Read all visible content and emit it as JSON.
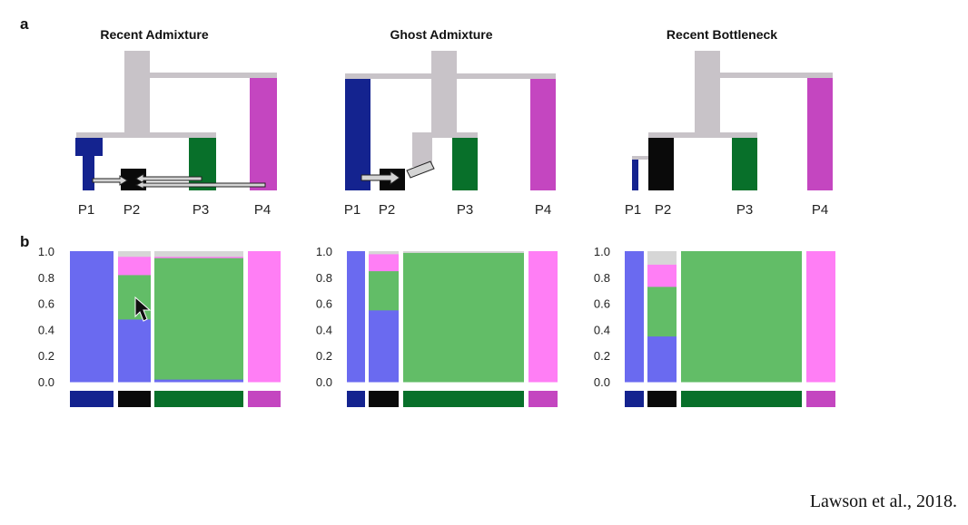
{
  "panel_a_label": "a",
  "panel_b_label": "b",
  "citation": "Lawson et al., 2018.",
  "colors": {
    "tree_trunk": "#c8c3c8",
    "P1": "#14238f",
    "P2": "#0a0a0a",
    "P3": "#08702a",
    "P4": "#c446c0",
    "arrow_fill": "#d4d4d4",
    "arrow_stroke": "#222222"
  },
  "trees": [
    {
      "title": "Recent Admixture",
      "populations": [
        "P1",
        "P2",
        "P3",
        "P4"
      ]
    },
    {
      "title": "Ghost Admixture",
      "populations": [
        "P1",
        "P2",
        "P3",
        "P4"
      ]
    },
    {
      "title": "Recent Bottleneck",
      "populations": [
        "P1",
        "P2",
        "P3",
        "P4"
      ]
    }
  ],
  "chart_data": [
    {
      "type": "bar",
      "stacked": true,
      "title": "",
      "yticks": [
        "0.0",
        "0.2",
        "0.4",
        "0.6",
        "0.8",
        "1.0"
      ],
      "ylim": [
        0,
        1
      ],
      "populations": [
        "P1",
        "P2",
        "P3",
        "P4"
      ],
      "components": [
        {
          "color": "#6a6af0",
          "fraction": {
            "P1": 1.0,
            "P2": 0.48,
            "P3": 0.02,
            "P4": 0.0
          }
        },
        {
          "color": "#62bd67",
          "fraction": {
            "P1": 0.0,
            "P2": 0.34,
            "P3": 0.93,
            "P4": 0.0
          }
        },
        {
          "color": "#ff7ef5",
          "fraction": {
            "P1": 0.0,
            "P2": 0.14,
            "P3": 0.01,
            "P4": 1.0
          }
        },
        {
          "color": "#d6d6d6",
          "fraction": {
            "P1": 0.0,
            "P2": 0.04,
            "P3": 0.04,
            "P4": 0.0
          }
        }
      ]
    },
    {
      "type": "bar",
      "stacked": true,
      "title": "",
      "yticks": [
        "0.0",
        "0.2",
        "0.4",
        "0.6",
        "0.8",
        "1.0"
      ],
      "ylim": [
        0,
        1
      ],
      "populations": [
        "P1",
        "P2",
        "P3",
        "P4"
      ],
      "components": [
        {
          "color": "#6a6af0",
          "fraction": {
            "P1": 1.0,
            "P2": 0.55,
            "P3": 0.0,
            "P4": 0.0
          }
        },
        {
          "color": "#62bd67",
          "fraction": {
            "P1": 0.0,
            "P2": 0.3,
            "P3": 0.99,
            "P4": 0.0
          }
        },
        {
          "color": "#ff7ef5",
          "fraction": {
            "P1": 0.0,
            "P2": 0.13,
            "P3": 0.0,
            "P4": 1.0
          }
        },
        {
          "color": "#d6d6d6",
          "fraction": {
            "P1": 0.0,
            "P2": 0.02,
            "P3": 0.01,
            "P4": 0.0
          }
        }
      ]
    },
    {
      "type": "bar",
      "stacked": true,
      "title": "",
      "yticks": [
        "0.0",
        "0.2",
        "0.4",
        "0.6",
        "0.8",
        "1.0"
      ],
      "ylim": [
        0,
        1
      ],
      "populations": [
        "P1",
        "P2",
        "P3",
        "P4"
      ],
      "components": [
        {
          "color": "#6a6af0",
          "fraction": {
            "P1": 1.0,
            "P2": 0.35,
            "P3": 0.0,
            "P4": 0.0
          }
        },
        {
          "color": "#62bd67",
          "fraction": {
            "P1": 0.0,
            "P2": 0.38,
            "P3": 1.0,
            "P4": 0.0
          }
        },
        {
          "color": "#ff7ef5",
          "fraction": {
            "P1": 0.0,
            "P2": 0.17,
            "P3": 0.0,
            "P4": 1.0
          }
        },
        {
          "color": "#d6d6d6",
          "fraction": {
            "P1": 0.0,
            "P2": 0.1,
            "P3": 0.0,
            "P4": 0.0
          }
        }
      ]
    }
  ]
}
